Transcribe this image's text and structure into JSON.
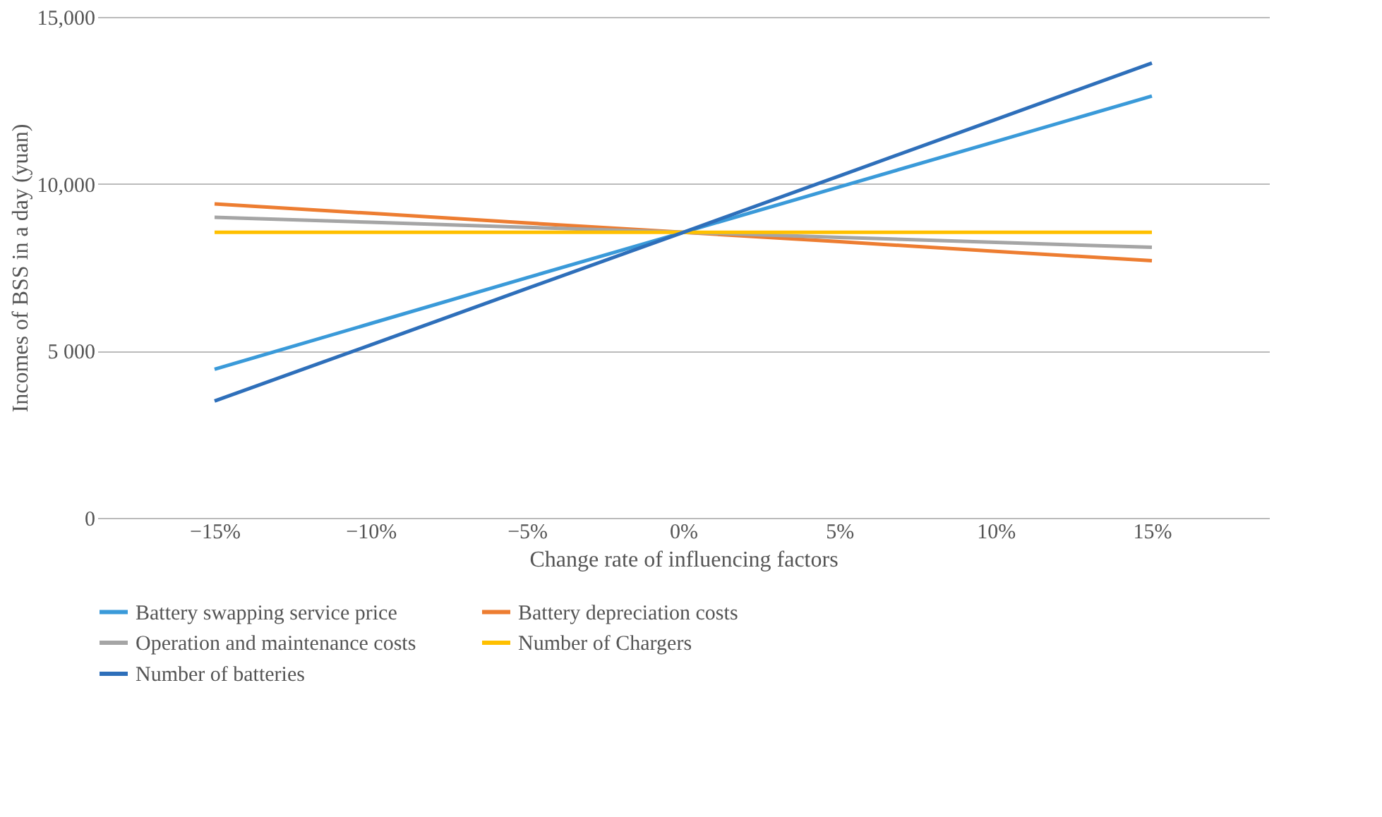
{
  "chart_data": {
    "type": "line",
    "xlabel": "Change rate of influencing factors",
    "ylabel": "Incomes of BSS in a day (yuan)",
    "categories": [
      "−15%",
      "−10%",
      "−5%",
      "0%",
      "5%",
      "10%",
      "15%"
    ],
    "series": [
      {
        "name": "Battery swapping service price",
        "color": "#3a9ad9",
        "values": [
          4450,
          5820,
          7190,
          8550,
          9910,
          11270,
          12630
        ]
      },
      {
        "name": "Battery depreciation costs",
        "color": "#ed7d31",
        "values": [
          9400,
          9120,
          8830,
          8550,
          8270,
          7980,
          7700
        ]
      },
      {
        "name": "Operation and maintenance costs",
        "color": "#a5a5a5",
        "values": [
          9000,
          8850,
          8700,
          8550,
          8400,
          8250,
          8100
        ]
      },
      {
        "name": "Number of Chargers",
        "color": "#ffc000",
        "values": [
          8550,
          8550,
          8550,
          8550,
          8550,
          8550,
          8550
        ]
      },
      {
        "name": "Number of batteries",
        "color": "#2e6fba",
        "values": [
          3500,
          5180,
          6870,
          8550,
          10240,
          11930,
          13620
        ]
      }
    ],
    "ylim": [
      0,
      15000
    ],
    "yticks": [
      0,
      {
        "value": 5000,
        "label": "5 000"
      },
      {
        "value": 10000,
        "label": "10,000"
      },
      {
        "value": 15000,
        "label": "15,000"
      }
    ],
    "grid": "y",
    "legend": "bottom",
    "marker": "none",
    "line_style": "solid"
  }
}
